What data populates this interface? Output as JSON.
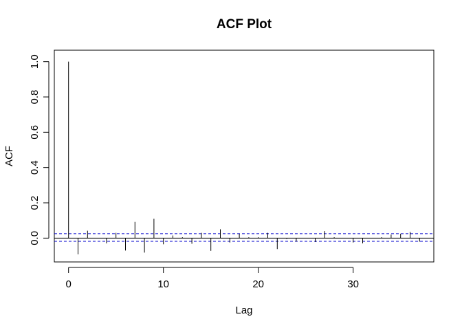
{
  "chart_data": {
    "type": "bar",
    "title": "ACF Plot",
    "xlabel": "Lag",
    "ylabel": "ACF",
    "xlim": [
      -1.5,
      38.5
    ],
    "ylim": [
      -0.135,
      1.065
    ],
    "x_ticks": [
      0,
      10,
      20,
      30
    ],
    "x_tick_labels": [
      "0",
      "10",
      "20",
      "30"
    ],
    "y_ticks": [
      0.0,
      0.2,
      0.4,
      0.6,
      0.8,
      1.0
    ],
    "y_tick_labels": [
      "0.0",
      "0.2",
      "0.4",
      "0.6",
      "0.8",
      "1.0"
    ],
    "lags": [
      0,
      1,
      2,
      3,
      4,
      5,
      6,
      7,
      8,
      9,
      10,
      11,
      12,
      13,
      14,
      15,
      16,
      17,
      18,
      19,
      20,
      21,
      22,
      23,
      24,
      25,
      26,
      27,
      28,
      29,
      30,
      31,
      32,
      33,
      34,
      35,
      36,
      37
    ],
    "values": [
      1.0,
      -0.092,
      0.042,
      0.0,
      -0.03,
      0.03,
      -0.07,
      0.092,
      -0.082,
      0.11,
      -0.035,
      0.015,
      0.005,
      -0.032,
      0.03,
      -0.072,
      0.05,
      -0.025,
      0.025,
      0.005,
      0.005,
      0.03,
      -0.062,
      -0.005,
      -0.02,
      0.0,
      -0.022,
      0.04,
      0.005,
      0.0,
      -0.025,
      -0.03,
      0.0,
      0.005,
      0.02,
      0.025,
      0.035,
      -0.02
    ],
    "confidence_band": {
      "upper": 0.025,
      "lower": -0.018,
      "color": "#0000cc",
      "style": "dashed"
    },
    "zero_line": 0
  }
}
